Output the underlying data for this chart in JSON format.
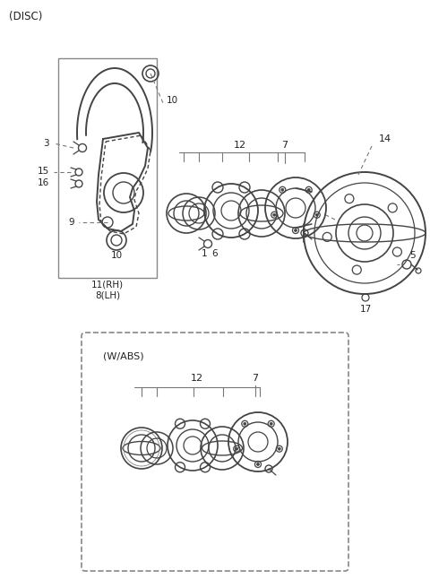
{
  "bg_color": "#ffffff",
  "line_color": "#444444",
  "text_color": "#222222",
  "dash_color": "#777777",
  "labels": {
    "disc_label": "(DISC)",
    "wabs_label": "(W/ABS)",
    "p3": "3",
    "p15": "15",
    "p16": "16",
    "p9": "9",
    "p10a": "10",
    "p10b": "10",
    "p11": "11(RH)",
    "p8": "8(LH)",
    "p12": "12",
    "p7": "7",
    "p1": "1",
    "p6": "6",
    "p14": "14",
    "p5": "5",
    "p17": "17",
    "p12b": "12",
    "p7b": "7"
  }
}
